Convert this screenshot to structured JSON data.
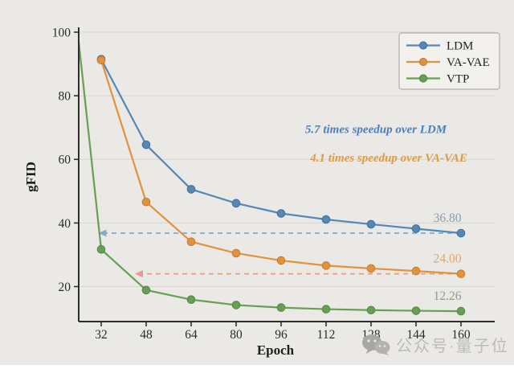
{
  "figure": {
    "background": "#eae9e6",
    "axis_color": "#2e2e2e",
    "grid_color": "#d8d6d2",
    "watermark": {
      "icon": "wechat-icon",
      "text": "公众号·量子位",
      "color": "#bdbbb7",
      "icon_color": "#a9a7a3"
    }
  },
  "chart_data": {
    "type": "line",
    "title": "",
    "xlabel": "Epoch",
    "ylabel": "gFID",
    "xlim": [
      24,
      172
    ],
    "ylim": [
      9,
      100
    ],
    "xticks": [
      32,
      48,
      64,
      80,
      96,
      112,
      128,
      144,
      160
    ],
    "yticks": [
      20,
      40,
      60,
      80,
      100
    ],
    "grid": "horizontal-only",
    "legend": {
      "position": "upper-right",
      "entries": [
        "LDM",
        "VA-VAE",
        "VTP"
      ]
    },
    "series": [
      {
        "name": "LDM",
        "color": "#5587b7",
        "edge": "#3f6f9e",
        "x": [
          32,
          48,
          64,
          80,
          96,
          112,
          128,
          144,
          160
        ],
        "y": [
          91.5,
          64.6,
          50.6,
          46.2,
          43.0,
          41.1,
          39.6,
          38.2,
          36.8
        ],
        "end_label": {
          "text": "36.80",
          "color": "#8f9aa8"
        }
      },
      {
        "name": "VA-VAE",
        "color": "#e2923d",
        "edge": "#c47c2c",
        "x": [
          32,
          48,
          64,
          80,
          96,
          112,
          128,
          144,
          160
        ],
        "y": [
          91.2,
          46.6,
          34.1,
          30.5,
          28.2,
          26.6,
          25.7,
          24.9,
          24.0
        ],
        "end_label": {
          "text": "24.00",
          "color": "#e2a468"
        }
      },
      {
        "name": "VTP",
        "color": "#67a053",
        "edge": "#548544",
        "x": [
          24,
          32,
          48,
          64,
          80,
          96,
          112,
          128,
          144,
          160
        ],
        "y": [
          97.0,
          31.7,
          18.9,
          15.9,
          14.2,
          13.4,
          12.9,
          12.6,
          12.4,
          12.26
        ],
        "end_label": {
          "text": "12.26",
          "color": "#90988c"
        },
        "note": "first point clipped at left axis edge"
      }
    ],
    "reference_arrows": [
      {
        "value": 36.8,
        "from_epoch": 160,
        "to_epoch": 31,
        "color": "#7fa6cd"
      },
      {
        "value": 24.0,
        "from_epoch": 160,
        "to_epoch": 44,
        "color": "#e39a7e"
      }
    ],
    "annotations": [
      {
        "text": "5.7 times speedup over LDM",
        "epoch": 129.7,
        "value": 69.5,
        "color": "#4b80bd"
      },
      {
        "text": "4.1 times speedup over VA-VAE",
        "epoch": 134.3,
        "value": 60.6,
        "color": "#dd9b4a"
      }
    ]
  }
}
